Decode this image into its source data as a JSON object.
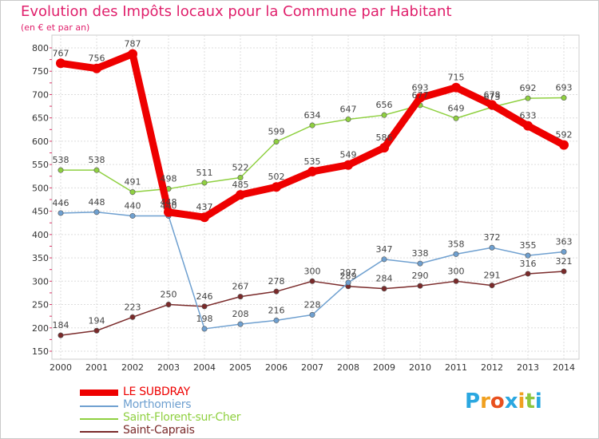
{
  "title": "Evolution des Impôts locaux pour la Commune par Habitant",
  "subtitle": "(en € et par an)",
  "logo": {
    "text": "Proxiti",
    "letters": [
      "P",
      "r",
      "o",
      "x",
      "i",
      "t",
      "i"
    ],
    "colors": [
      "#2aa7e0",
      "#f0a020",
      "#e8501e",
      "#2aa7e0",
      "#f0a020",
      "#8dc63f",
      "#2aa7e0"
    ]
  },
  "chart_data": {
    "type": "line",
    "x": [
      "2000",
      "2001",
      "2002",
      "2003",
      "2004",
      "2005",
      "2006",
      "2007",
      "2008",
      "2009",
      "2010",
      "2011",
      "2012",
      "2013",
      "2014"
    ],
    "ylim": [
      150,
      800
    ],
    "yticks": [
      "800",
      "750",
      "700",
      "650",
      "600",
      "550",
      "500",
      "450",
      "400",
      "350",
      "300",
      "250",
      "200",
      "150"
    ],
    "grid": true,
    "legend_position": "bottom-left",
    "series": [
      {
        "name": "LE SUBDRAY",
        "color": "#ee0000",
        "values": [
          767,
          756,
          787,
          448,
          437,
          485,
          502,
          535,
          549,
          586,
          693,
          715,
          678,
          633,
          592
        ],
        "labels": [
          "767",
          "756",
          "787",
          "448",
          "437",
          "485",
          "502",
          "535",
          "549",
          "586",
          "693",
          "715",
          "678",
          "633",
          "592"
        ]
      },
      {
        "name": "Morthomiers",
        "color": "#6fa0d0",
        "values": [
          446,
          448,
          440,
          440,
          198,
          208,
          216,
          228,
          297,
          347,
          338,
          358,
          372,
          355,
          363
        ],
        "labels": [
          "446",
          "448",
          "440",
          "440",
          "198",
          "208",
          "216",
          "228",
          "297",
          "347",
          "338",
          "358",
          "372",
          "355",
          "363"
        ]
      },
      {
        "name": "Saint-Florent-sur-Cher",
        "color": "#8fd040",
        "values": [
          538,
          538,
          491,
          498,
          511,
          522,
          599,
          634,
          647,
          656,
          677,
          649,
          673,
          692,
          693
        ],
        "labels": [
          "538",
          "538",
          "491",
          "498",
          "511",
          "522",
          "599",
          "634",
          "647",
          "656",
          "677",
          "649",
          "673",
          "692",
          "693"
        ]
      },
      {
        "name": "Saint-Caprais",
        "color": "#7a2a2a",
        "values": [
          184,
          194,
          223,
          250,
          246,
          267,
          278,
          300,
          289,
          284,
          290,
          300,
          291,
          316,
          321
        ],
        "labels": [
          "184",
          "194",
          "223",
          "250",
          "246",
          "267",
          "278",
          "300",
          "289",
          "284",
          "290",
          "300",
          "291",
          "316",
          "321"
        ]
      }
    ]
  }
}
